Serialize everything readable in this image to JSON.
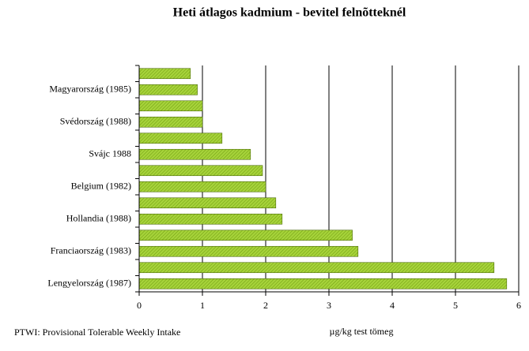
{
  "chart_data": {
    "type": "hbar",
    "title": "Heti átlagos kadmium - bevitel felnõtteknél",
    "x_label": "µg/kg test tömeg",
    "footnote": "PTWI: Provisional Tolerable Weekly Intake",
    "categories": [
      null,
      "Magyarország (1985)",
      null,
      "Svédország (1988)",
      null,
      "Svájc 1988",
      null,
      "Belgium (1982)",
      null,
      "Hollandia (1988)",
      null,
      "Franciaország (1983)",
      null,
      "Lengyelország (1987)"
    ],
    "values": [
      0.81,
      0.92,
      1.0,
      1.0,
      1.31,
      1.76,
      1.95,
      2.0,
      2.16,
      2.26,
      3.37,
      3.46,
      5.61,
      5.81
    ],
    "color": "#8fc31f",
    "xlim": [
      0,
      6
    ],
    "xticks": [
      0,
      1,
      2,
      3,
      4,
      5,
      6
    ],
    "grid": true
  }
}
